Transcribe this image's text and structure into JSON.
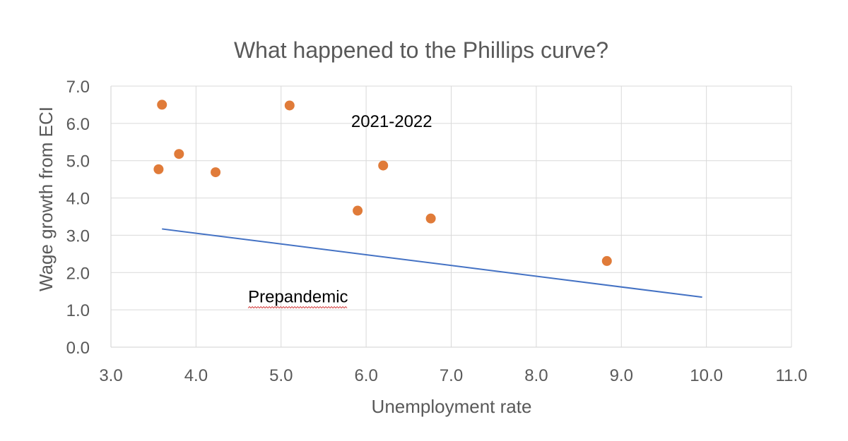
{
  "chart_data": {
    "type": "scatter",
    "title": "What happened to the Phillips curve?",
    "xlabel": "Unemployment rate",
    "ylabel": "Wage growth from ECI",
    "xlim": [
      3.0,
      11.0
    ],
    "ylim": [
      0.0,
      7.0
    ],
    "x_ticks": [
      "3.0",
      "4.0",
      "5.0",
      "6.0",
      "7.0",
      "8.0",
      "9.0",
      "10.0",
      "11.0"
    ],
    "y_ticks": [
      "0.0",
      "1.0",
      "2.0",
      "3.0",
      "4.0",
      "5.0",
      "6.0",
      "7.0"
    ],
    "grid": true,
    "points": [
      {
        "x": 3.56,
        "y": 4.77
      },
      {
        "x": 3.6,
        "y": 6.5
      },
      {
        "x": 3.8,
        "y": 5.18
      },
      {
        "x": 4.23,
        "y": 4.69
      },
      {
        "x": 5.1,
        "y": 6.48
      },
      {
        "x": 5.9,
        "y": 3.66
      },
      {
        "x": 6.2,
        "y": 4.87
      },
      {
        "x": 6.76,
        "y": 3.45
      },
      {
        "x": 8.83,
        "y": 2.31
      }
    ],
    "trend_line": {
      "x": [
        3.6,
        9.95
      ],
      "y": [
        3.17,
        1.34
      ]
    },
    "annotations": [
      {
        "text": "2021-2022",
        "x": 6.3,
        "y": 5.9
      },
      {
        "text": "Prepandemic",
        "x": 5.2,
        "y": 1.2
      }
    ],
    "colors": {
      "points": "#e07b39",
      "line": "#4472c4"
    }
  }
}
